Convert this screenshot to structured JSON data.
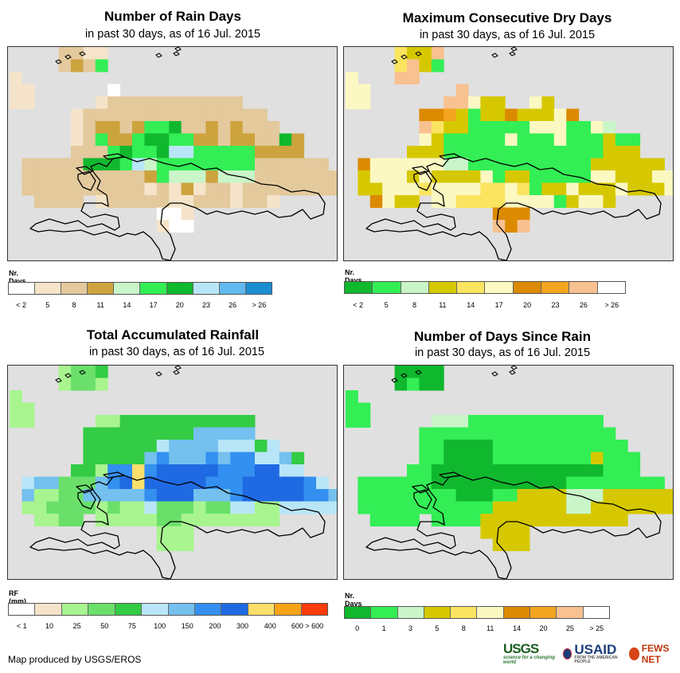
{
  "panels": [
    {
      "title": "Number of Rain Days",
      "subtitle": "in past 30 days, as of 16 Jul. 2015",
      "legend_title": "Nr. Days",
      "legend_colors": [
        "#ffffff",
        "#f5e4c9",
        "#e3c99c",
        "#cda33e",
        "#c9f5c9",
        "#33ee55",
        "#10b82e",
        "#b8e6f8",
        "#62b9f0",
        "#1a8ed1"
      ],
      "legend_labels": [
        "< 2",
        "5",
        "8",
        "11",
        "14",
        "17",
        "20",
        "23",
        "26",
        "> 26"
      ],
      "label_mode": "centers",
      "map_palette": {
        "B": "#f5e4c9",
        "C": "#e3c99c",
        "D": "#cda33e",
        "E": "#c9f5c9",
        "F": "#33ee55",
        "G": "#10b82e",
        "H": "#b8e6f8",
        "W": "#ffffff"
      },
      "grid": [
        "....CCBB...................",
        "....CDCF...................",
        "B..........................",
        "BB......W..................",
        "BB.....BCCCCCCCCCCC........",
        ".....BCCCCCCCCCCCCCCC......",
        ".....BCDDCDFFGCCDCDCCC.....",
        ".....BCFDDFGGFFDDCDDCCGD...",
        ".....CCCFGFFGHHFFFFFDDDD...",
        ".CCCCCGGGFHEFFFFFFFFCCCCCC.",
        ".CCCCCCCCCCDFEEEDEEECCCCCCC",
        ".CCCCCCCCCCBCBDBCCBCCCCCCCC",
        "..CCCC.BCCCCCBBCCCBCCB.....",
        "............WWB............",
        "............BWW............"
      ]
    },
    {
      "title": "Maximum Consecutive Dry Days",
      "subtitle": "in past 30 days, as of 16 Jul. 2015",
      "legend_title": "Nr. Days",
      "legend_colors": [
        "#10b82e",
        "#33ee55",
        "#c9f5c9",
        "#d6c800",
        "#fbe45f",
        "#fcf8c2",
        "#dc8a00",
        "#f4a520",
        "#f8c190",
        "#ffffff"
      ],
      "legend_labels": [
        "< 2",
        "5",
        "8",
        "11",
        "14",
        "17",
        "20",
        "23",
        "26",
        "> 26"
      ],
      "label_mode": "centers",
      "map_palette": {
        "A": "#f8c190",
        "D": "#d6c800",
        "F": "#33ee55",
        "E": "#c9f5c9",
        "G": "#10b82e",
        "H": "#f4a520",
        "L": "#fcf8c2",
        "M": "#dc8a00",
        "Y": "#fbe45f"
      },
      "grid": [
        "....YDDA...................",
        "....YADF...................",
        "L...AA.....................",
        "LL.......A.................",
        "LL......AALDD..LD..........",
        "......MMHDFDDMDDDLM........",
        "......AYDDFFFFFLLLFFLE.....",
        "......LDFFFFFLFFFLFFFDFF...",
        ".....DDDFFFFFFFFFFFFFDDD...",
        ".MLLLLLLEEFFFFFFFFFFDDDDDD.",
        ".DLLLDLDDDDLFDDFFFFFLLDDDLL",
        ".DDLLLYLLLLYYLYFDDLDDDLDDDL",
        "..MLDD.LLYYYYLLLLFDLLD.....",
        "............MMM............",
        "............AMA............"
      ]
    },
    {
      "title": "Total Accumulated Rainfall",
      "subtitle": "in past 30 days, as of 16 Jul. 2015",
      "legend_title": "RF (mm)",
      "legend_colors": [
        "#ffffff",
        "#f5e4c9",
        "#a8f58f",
        "#6ae06a",
        "#33cc44",
        "#b8e6f8",
        "#74c0ee",
        "#3390f0",
        "#1f6ae3",
        "#fcdf6a",
        "#f8a316",
        "#fb3b08"
      ],
      "legend_labels": [
        "< 1",
        "10",
        "25",
        "50",
        "75",
        "100",
        "150",
        "200",
        "300",
        "400",
        "600 > 600"
      ],
      "label_mode": "edges",
      "map_palette": {
        "G": "#a8f58f",
        "M": "#6ae06a",
        "N": "#33cc44",
        "K": "#b8e6f8",
        "L": "#74c0ee",
        "B": "#3390f0",
        "U": "#1f6ae3",
        "Y": "#fcdf6a"
      },
      "grid": [
        "....GMMN...................",
        "....GMMG...................",
        "G..........................",
        "GG.........................",
        "GG.....GGNNNNNNNNNNN.......",
        "......NNNNNNNNNLLLLL.......",
        "......NNNNNNKLLLLKKKNK.....",
        "......NNNNNLBLLLBLBBKKLN...",
        ".....NNGBBYBUUUUUBBBUUKK...",
        ".KLLMMMLBUYUUUUUBBBUUUUUBK.",
        ".LGGMMLLLLLBUUULLLBUUUUUBBL",
        ".GGMMMMGMGGKMMMGMMKKGGKKKKK",
        "..GGMM.GGGGGMMGGGGGGGG.....",
        "............GGG............",
        "............GGG............"
      ]
    },
    {
      "title": "Number of Days Since Rain",
      "subtitle": "in past 30 days, as of 16 Jul. 2015",
      "legend_title": "Nr. Days",
      "legend_colors": [
        "#10b82e",
        "#33ee55",
        "#c9f5c9",
        "#d6c800",
        "#fbe45f",
        "#fcf8c2",
        "#dc8a00",
        "#f4a520",
        "#f8c190",
        "#ffffff"
      ],
      "legend_labels": [
        "0",
        "1",
        "3",
        "5",
        "8",
        "11",
        "14",
        "20",
        "25",
        "> 25"
      ],
      "label_mode": "centers",
      "map_palette": {
        "F": "#33ee55",
        "G": "#10b82e",
        "E": "#c9f5c9",
        "D": "#d6c800"
      },
      "grid": [
        "....GGGG...................",
        "....GFGG...................",
        "F..........................",
        "FF.........................",
        "FF.....EEEFFFFFFFFFFF......",
        "......FFFFFFFFFFFFFFFF.....",
        "......FFGGGGFFFFFFFFFFF....",
        "......FFGGGGFFFFFFFFDFFF...",
        ".....FFGGGGGGGGGGGGGGFFF...",
        ".FFFFFFGGGGGGGGGGGFFFFFFFF.",
        ".FFFFFFFFGGGFFDDDDEEEDDDDDD",
        ".FFFFFFFFFFFDDDDDDEEDDDDDDD",
        "..FFFF.FFFFDDDDDDDDDDDD....",
        "...........DDDD............",
        "............DDD............"
      ]
    }
  ],
  "footer": "Map produced by USGS/EROS",
  "logos": {
    "usgs": "USGS",
    "usgs_tagline": "science for a changing world",
    "usaid": "USAID",
    "usaid_tagline": "FROM THE AMERICAN PEOPLE",
    "fews": "FEWS NET"
  },
  "colors": {
    "map_background": "#e0e0e0",
    "outline": "#000000"
  }
}
